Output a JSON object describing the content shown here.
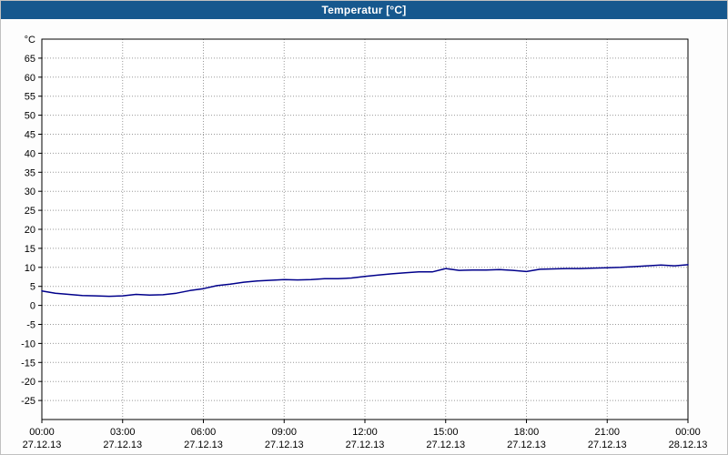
{
  "colors": {
    "titlebar_bg": "#16588e",
    "titlebar_text": "#ffffff",
    "window_bg": "#fdfdfd",
    "plot_bg": "#ffffff",
    "grid": "#999999",
    "plot_border": "#000000",
    "tick_text": "#000000",
    "line": "#00008b"
  },
  "chart_data": {
    "type": "line",
    "title": "Temperatur [°C]",
    "ylabel": "°C",
    "xlabel": "",
    "ylim": [
      -30,
      70
    ],
    "xlim": [
      0,
      24
    ],
    "grid": true,
    "legend": "none",
    "yticks": [
      65,
      60,
      55,
      50,
      45,
      40,
      35,
      30,
      25,
      20,
      15,
      10,
      5,
      0,
      -5,
      -10,
      -15,
      -20,
      -25
    ],
    "xticks": [
      {
        "hour": 0,
        "time": "00:00",
        "date": "27.12.13"
      },
      {
        "hour": 3,
        "time": "03:00",
        "date": "27.12.13"
      },
      {
        "hour": 6,
        "time": "06:00",
        "date": "27.12.13"
      },
      {
        "hour": 9,
        "time": "09:00",
        "date": "27.12.13"
      },
      {
        "hour": 12,
        "time": "12:00",
        "date": "27.12.13"
      },
      {
        "hour": 15,
        "time": "15:00",
        "date": "27.12.13"
      },
      {
        "hour": 18,
        "time": "18:00",
        "date": "27.12.13"
      },
      {
        "hour": 21,
        "time": "21:00",
        "date": "27.12.13"
      },
      {
        "hour": 24,
        "time": "00:00",
        "date": "28.12.13"
      }
    ],
    "series": [
      {
        "name": "Temperatur",
        "color": "#00008b",
        "x": [
          0,
          0.5,
          1,
          1.5,
          2,
          2.5,
          3,
          3.5,
          4,
          4.5,
          5,
          5.5,
          6,
          6.5,
          7,
          7.5,
          8,
          8.5,
          9,
          9.5,
          10,
          10.5,
          11,
          11.5,
          12,
          12.5,
          13,
          13.5,
          14,
          14.5,
          15,
          15.5,
          16,
          16.5,
          17,
          17.5,
          18,
          18.5,
          19,
          19.5,
          20,
          20.5,
          21,
          21.5,
          22,
          22.5,
          23,
          23.5,
          24
        ],
        "values": [
          3.8,
          3.2,
          2.9,
          2.6,
          2.5,
          2.4,
          2.5,
          2.9,
          2.7,
          2.8,
          3.2,
          3.9,
          4.4,
          5.2,
          5.6,
          6.1,
          6.4,
          6.6,
          6.8,
          6.7,
          6.8,
          7.0,
          7.0,
          7.2,
          7.6,
          8.0,
          8.3,
          8.6,
          8.8,
          8.8,
          9.7,
          9.2,
          9.3,
          9.3,
          9.4,
          9.2,
          8.9,
          9.5,
          9.6,
          9.7,
          9.7,
          9.8,
          9.9,
          10.0,
          10.2,
          10.4,
          10.6,
          10.4,
          10.7
        ]
      }
    ]
  }
}
